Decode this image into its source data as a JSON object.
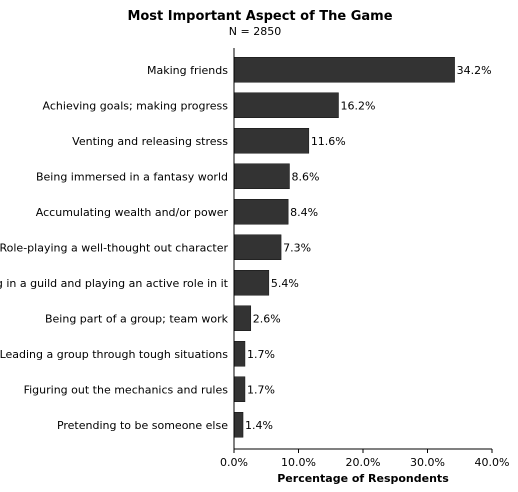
{
  "chart_data": {
    "type": "bar",
    "orientation": "horizontal",
    "title": "Most Important Aspect of The Game",
    "subtitle": "N = 2850",
    "xlabel": "Percentage of Respondents",
    "ylabel": "",
    "xlim": [
      0,
      40
    ],
    "x_ticks": [
      "0.0%",
      "10.0%",
      "20.0%",
      "30.0%",
      "40.0%"
    ],
    "categories": [
      "Making friends",
      "Achieving goals; making progress",
      "Venting and releasing stress",
      "Being immersed in a fantasy world",
      "Accumulating wealth and/or power",
      "Role-playing a well-thought out character",
      "Being in a guild and playing an active role in it",
      "Being part of a group; team work",
      "Leading a group through tough situations",
      "Figuring out the mechanics and rules",
      "Pretending to be someone else"
    ],
    "values": [
      34.2,
      16.2,
      11.6,
      8.6,
      8.4,
      7.3,
      5.4,
      2.6,
      1.7,
      1.7,
      1.4
    ],
    "value_labels": [
      "34.2%",
      "16.2%",
      "11.6%",
      "8.6%",
      "8.4%",
      "7.3%",
      "5.4%",
      "2.6%",
      "1.7%",
      "1.7%",
      "1.4%"
    ],
    "grid": false,
    "legend": "none",
    "colors": {
      "bar": "#333333",
      "axis": "#000000"
    }
  }
}
